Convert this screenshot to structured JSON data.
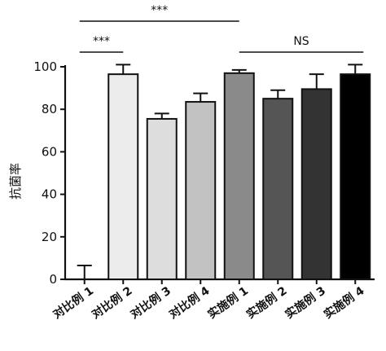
{
  "chart_data": {
    "type": "bar",
    "ylabel": "抗菌率",
    "xlabel": "",
    "title": "",
    "ylim": [
      0,
      100
    ],
    "yticks": [
      0,
      20,
      40,
      60,
      80,
      100
    ],
    "grid": false,
    "legend": "none",
    "categories": [
      "对比例 1",
      "对比例 2",
      "对比例 3",
      "对比例 4",
      "实施例 1",
      "实施例 2",
      "实施例 3",
      "实施例 4"
    ],
    "values": [
      0,
      96.5,
      75.5,
      83.5,
      97,
      85,
      89.5,
      96.5
    ],
    "errors": [
      6.5,
      4.5,
      2.5,
      4,
      1.5,
      4,
      7,
      4.5
    ],
    "colors": [
      "#ffffff",
      "#ececec",
      "#dddddd",
      "#c2c2c2",
      "#8a8a8a",
      "#555555",
      "#333333",
      "#000000"
    ],
    "significance": [
      {
        "from": 0,
        "to": 4,
        "label": "***"
      },
      {
        "from": 0,
        "to": 1,
        "label": "***"
      },
      {
        "from": 4,
        "to": 7,
        "label": "NS"
      }
    ]
  }
}
